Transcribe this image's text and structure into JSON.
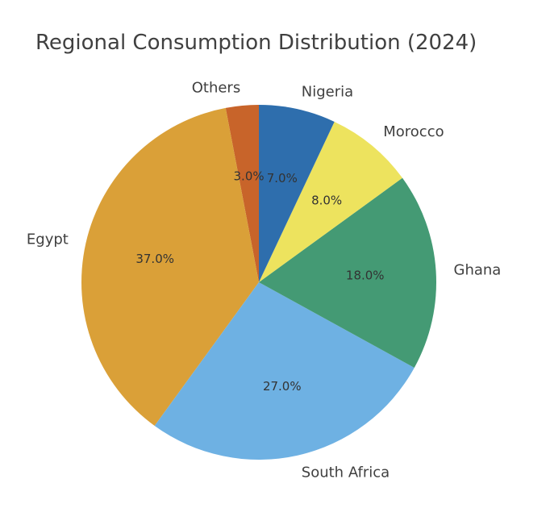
{
  "chart_data": {
    "type": "pie",
    "title": "Regional Consumption Distribution (2024)",
    "start_angle_deg": 90,
    "direction": "counterclockwise",
    "slices": [
      {
        "label": "Others",
        "value": 3.0,
        "pct_label": "3.0%",
        "color": "#C8642A"
      },
      {
        "label": "Egypt",
        "value": 37.0,
        "pct_label": "37.0%",
        "color": "#DAA038"
      },
      {
        "label": "South Africa",
        "value": 27.0,
        "pct_label": "27.0%",
        "color": "#6EB1E3"
      },
      {
        "label": "Ghana",
        "value": 18.0,
        "pct_label": "18.0%",
        "color": "#449A74"
      },
      {
        "label": "Morocco",
        "value": 8.0,
        "pct_label": "8.0%",
        "color": "#EDE35E"
      },
      {
        "label": "Nigeria",
        "value": 7.0,
        "pct_label": "7.0%",
        "color": "#2E6EAD"
      }
    ]
  }
}
